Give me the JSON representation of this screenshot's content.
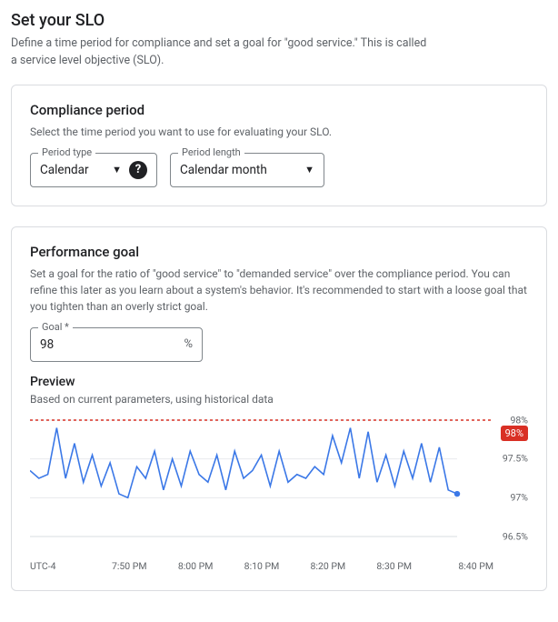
{
  "page": {
    "title": "Set your SLO",
    "subtitle": "Define a time period for compliance and set a goal for \"good service.\" This is called a service level objective (SLO)."
  },
  "compliance": {
    "heading": "Compliance period",
    "desc": "Select the time period you want to use for evaluating your SLO.",
    "period_type": {
      "label": "Period type",
      "value": "Calendar"
    },
    "period_length": {
      "label": "Period length",
      "value": "Calendar month"
    }
  },
  "perf": {
    "heading": "Performance goal",
    "desc": "Set a goal for the ratio of \"good service\" to \"demanded service\" over the compliance period. You can refine this later as you learn about a system's behavior. It's recommended to start with a loose goal that you tighten than an overly strict goal.",
    "goal": {
      "label": "Goal *",
      "value": "98",
      "suffix": "%"
    }
  },
  "preview": {
    "heading": "Preview",
    "sub": "Based on current parameters, using historical data",
    "badge": "98%",
    "y_labels": [
      "98%",
      "97.5%",
      "97%",
      "96.5%"
    ],
    "x_labels": [
      "UTC-4",
      "7:50 PM",
      "8:00 PM",
      "8:10 PM",
      "8:20 PM",
      "8:30 PM",
      "8:40 PM"
    ],
    "colors": {
      "goal_line": "#d93025",
      "series_line": "#3b78e7",
      "marker": "#3b78e7",
      "grid": "#e8eaed",
      "baseline": "#dadce0"
    },
    "chart": {
      "ymin": 96.5,
      "ymax": 98.0,
      "values": [
        97.35,
        97.25,
        97.3,
        97.9,
        97.25,
        97.7,
        97.2,
        97.55,
        97.15,
        97.45,
        97.05,
        97.0,
        97.4,
        97.25,
        97.6,
        97.1,
        97.5,
        97.15,
        97.6,
        97.3,
        97.2,
        97.55,
        97.1,
        97.6,
        97.25,
        97.35,
        97.55,
        97.15,
        97.6,
        97.2,
        97.3,
        97.25,
        97.4,
        97.3,
        97.8,
        97.45,
        97.9,
        97.25,
        97.85,
        97.2,
        97.55,
        97.15,
        97.6,
        97.25,
        97.7,
        97.2,
        97.65,
        97.1,
        97.05
      ]
    }
  }
}
